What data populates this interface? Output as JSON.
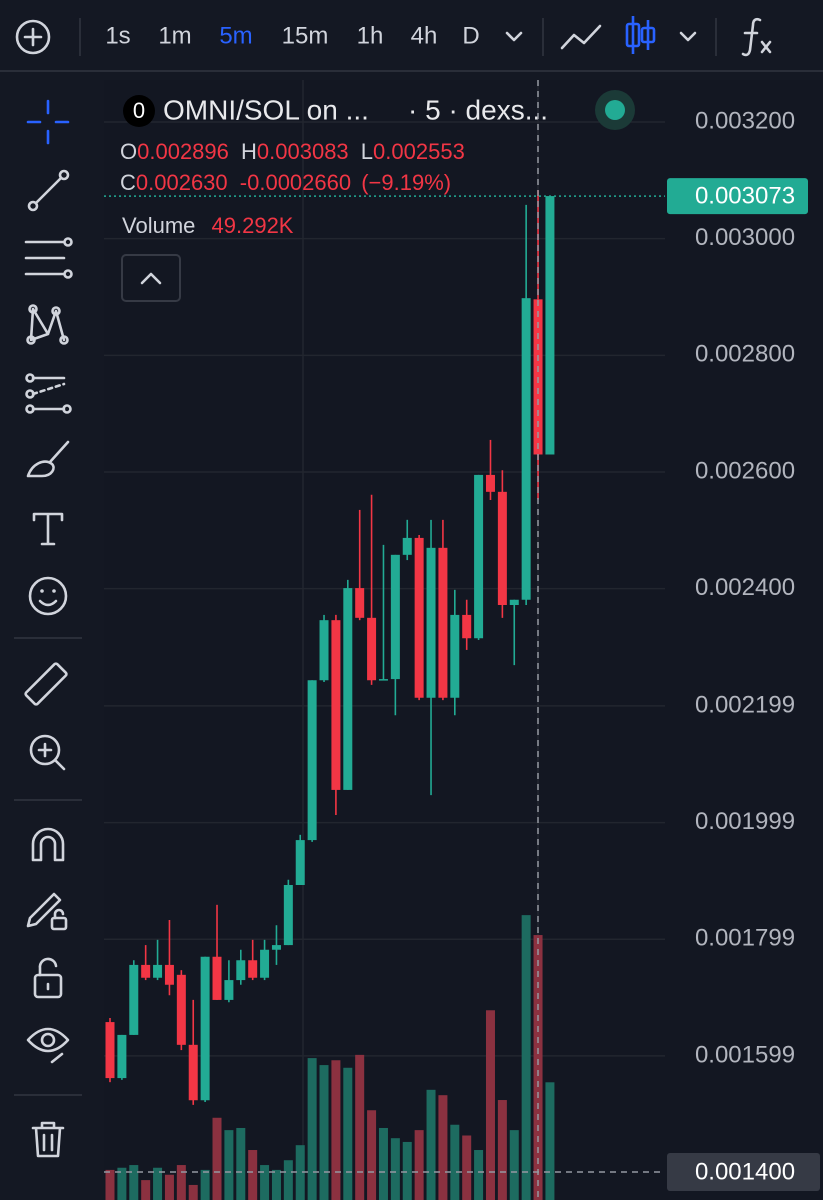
{
  "toolbar": {
    "intervals": [
      "1s",
      "1m",
      "5m",
      "15m",
      "1h",
      "4h",
      "D"
    ],
    "active_interval": 2
  },
  "legend": {
    "symbol_logo": "0",
    "symbol": "OMNI/SOL on ...",
    "details": "· 5 · dexs...",
    "open_label": "O",
    "open": "0.002896",
    "high_label": "H",
    "high": "0.003083",
    "low_label": "L",
    "low": "0.002553",
    "close_label": "C",
    "close": "0.002630",
    "change": "-0.0002660",
    "change_percent": "(−9.19%)",
    "volume_label": "Volume",
    "volume": "49.292K"
  },
  "chart_data": {
    "type": "candlestick",
    "open": [
      0.001657,
      0.001561,
      0.001635,
      0.001755,
      0.001733,
      0.001755,
      0.001738,
      0.001618,
      0.001523,
      0.001769,
      0.001695,
      0.001729,
      0.001763,
      0.001733,
      0.001781,
      0.001789,
      0.001892,
      0.001969,
      0.002243,
      0.002346,
      0.002055,
      0.002401,
      0.00235,
      0.002243,
      0.002245,
      0.002458,
      0.002487,
      0.002213,
      0.00247,
      0.002213,
      0.002355,
      0.002315,
      0.002595,
      0.002566,
      0.002372,
      0.002381,
      0.002896,
      0.00263
    ],
    "high": [
      0.001664,
      0.001635,
      0.001763,
      0.001789,
      0.001798,
      0.001832,
      0.001746,
      0.001695,
      0.001769,
      0.001858,
      0.001763,
      0.001781,
      0.001798,
      0.001798,
      0.001823,
      0.001901,
      0.001978,
      0.002243,
      0.002355,
      0.002355,
      0.002415,
      0.002535,
      0.002561,
      0.002475,
      0.002458,
      0.002518,
      0.002492,
      0.002518,
      0.002518,
      0.002398,
      0.002381,
      0.002595,
      0.002655,
      0.002603,
      0.002381,
      0.003058,
      0.003083,
      0.00307
    ],
    "low": [
      0.001554,
      0.001558,
      0.001635,
      0.001729,
      0.001729,
      0.001703,
      0.001609,
      0.001515,
      0.00152,
      0.001695,
      0.001691,
      0.001721,
      0.001729,
      0.001729,
      0.001755,
      0.001789,
      0.001892,
      0.001966,
      0.00224,
      0.002012,
      0.002055,
      0.002346,
      0.002235,
      0.002243,
      0.002183,
      0.002449,
      0.002209,
      0.002046,
      0.002209,
      0.002183,
      0.002295,
      0.002312,
      0.002552,
      0.00235,
      0.002269,
      0.002372,
      0.002553,
      0.00263
    ],
    "close": [
      0.001561,
      0.001635,
      0.001755,
      0.001733,
      0.001755,
      0.001721,
      0.001618,
      0.001523,
      0.001769,
      0.001695,
      0.001729,
      0.001763,
      0.001733,
      0.001781,
      0.001789,
      0.001892,
      0.001969,
      0.002243,
      0.002346,
      0.002055,
      0.002401,
      0.00235,
      0.002243,
      0.002245,
      0.002458,
      0.002487,
      0.002213,
      0.00247,
      0.002213,
      0.002355,
      0.002315,
      0.002595,
      0.002566,
      0.002372,
      0.002381,
      0.002898,
      0.00263,
      0.003073
    ],
    "volume": [
      5.6,
      6,
      6.5,
      3.7,
      6,
      4.7,
      6.5,
      2.8,
      5.6,
      15.3,
      13,
      13.4,
      9.3,
      6.5,
      5.6,
      7.4,
      10.2,
      26.4,
      25.1,
      26,
      24.6,
      27,
      16.7,
      13.4,
      11.5,
      10.8,
      13,
      20.5,
      19.5,
      14,
      12,
      9.3,
      35.3,
      18.6,
      13,
      53,
      49.292,
      21.9
    ],
    "vlim": [
      0,
      64
    ],
    "ylim": [
      0.001352,
      0.003272
    ],
    "yticks": [
      {
        "value": 0.0032,
        "label": "0.003200"
      },
      {
        "value": 0.003,
        "label": "0.003000"
      },
      {
        "value": 0.0028,
        "label": "0.002800"
      },
      {
        "value": 0.0026,
        "label": "0.002600"
      },
      {
        "value": 0.0024,
        "label": "0.002400"
      },
      0.002199,
      0.001999,
      0.001799,
      0.001599
    ],
    "grid": true,
    "up_color": "#22ab94",
    "down_color": "#f23645",
    "up_volume_color": "#1d6b60",
    "down_volume_color": "#8b3140",
    "last_price": {
      "value": 0.003073,
      "label": "0.003073"
    },
    "crosshair_price": {
      "value": 0.0014,
      "label": "0.001400"
    }
  }
}
